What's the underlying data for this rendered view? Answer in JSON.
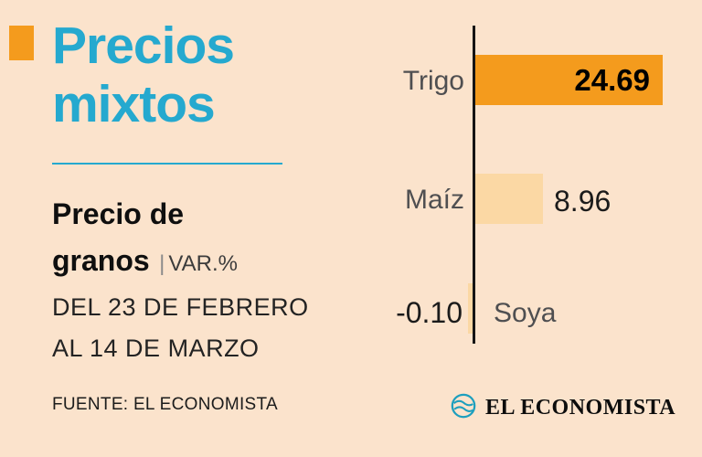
{
  "colors": {
    "background": "#FBE3CC",
    "accent_orange": "#F49B1D",
    "light_orange": "#FBD8A4",
    "cyan": "#25A9CF",
    "logo_teal": "#1D9FBE"
  },
  "header": {
    "title_line1": "Precios",
    "title_line2": "mixtos"
  },
  "subtitle": {
    "bold_line1": "Precio de",
    "bold_line2": "granos",
    "separator": "|",
    "unit": "VAR.%",
    "period_line1": "DEL 23 DE FEBRERO",
    "period_line2": "AL 14 DE MARZO"
  },
  "source": "FUENTE: EL ECONOMISTA",
  "logo": {
    "text": "EL ECONOMISTA",
    "icon": "circular-wave-logo-mark"
  },
  "chart_data": {
    "type": "bar",
    "orientation": "horizontal",
    "title": "Precio de granos",
    "units": "VAR.%",
    "period": "DEL 23 DE FEBRERO AL 14 DE MARZO",
    "categories": [
      "Trigo",
      "Maíz",
      "Soya"
    ],
    "values": [
      24.69,
      8.96,
      -0.1
    ],
    "value_labels": [
      "24.69",
      "8.96",
      "-0.10"
    ],
    "bar_colors": [
      "#F49B1D",
      "#FBD8A4",
      "#FBD8A4"
    ],
    "axis": "vertical baseline at zero, positive bars extend right",
    "grid": false,
    "legend": false
  }
}
